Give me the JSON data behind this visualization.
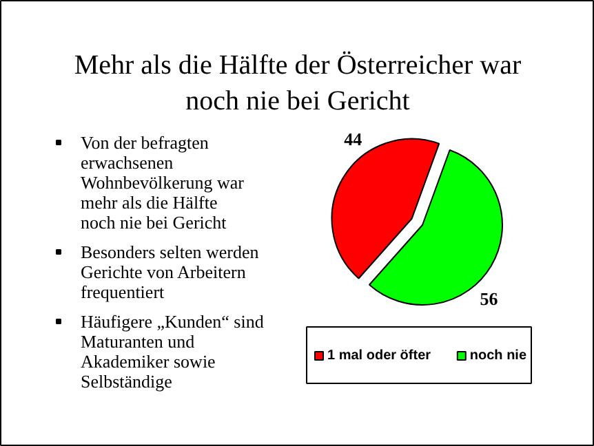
{
  "chart_data": {
    "type": "pie",
    "title": "Mehr als die Hälfte der Österreicher war noch nie bei Gericht",
    "categories": [
      "1 mal oder öfter",
      "noch nie"
    ],
    "values": [
      44,
      56
    ],
    "colors": [
      "#ff0000",
      "#00ff00"
    ],
    "data_labels": true,
    "legend": "bottom",
    "annotations": [
      "Von der befragten erwachsenen Wohnbevölkerung war mehr als die Hälfte noch nie bei Gericht",
      "Besonders selten werden Gerichte von Arbeitern frequentiert",
      "Häufigere „Kunden“ sind Maturanten und Akademiker sowie Selbständige"
    ]
  }
}
